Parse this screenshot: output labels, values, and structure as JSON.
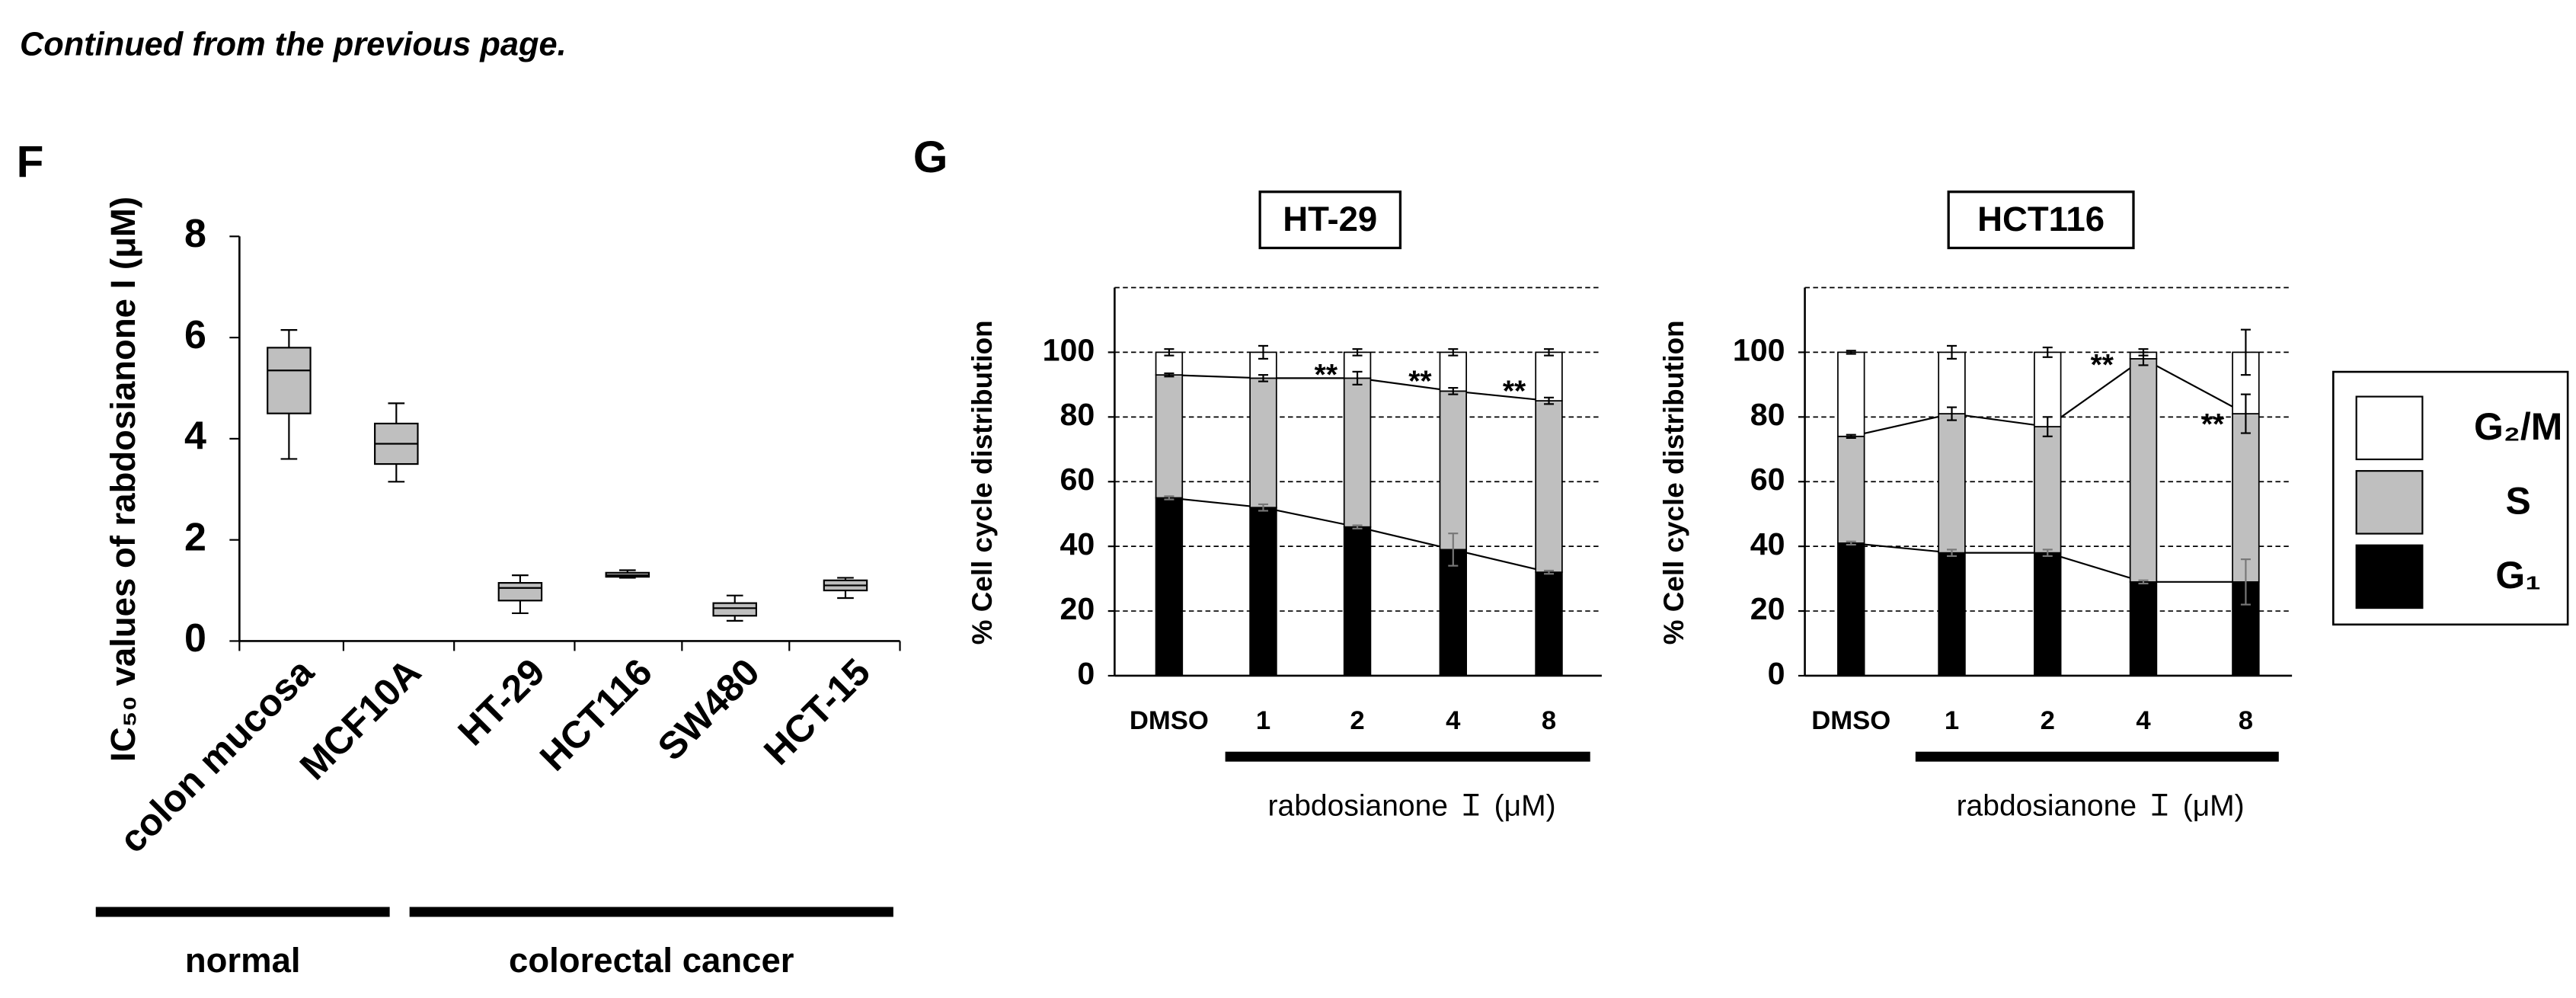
{
  "header": "Continued from the previous page.",
  "panels": [
    "F",
    "G"
  ],
  "chart_data": [
    {
      "type": "box",
      "ylabel": "IC₅₀ values of rabdosianone I (μM)",
      "categories": [
        "colon mucosa",
        "MCF10A",
        "HT-29",
        "HCT116",
        "SW480",
        "HCT-15"
      ],
      "boxes": [
        {
          "min": 3.6,
          "q1": 4.5,
          "median": 5.35,
          "q3": 5.8,
          "max": 6.15
        },
        {
          "min": 3.15,
          "q1": 3.5,
          "median": 3.9,
          "q3": 4.3,
          "max": 4.7
        },
        {
          "min": 0.55,
          "q1": 0.8,
          "median": 1.05,
          "q3": 1.15,
          "max": 1.3
        },
        {
          "min": 1.25,
          "q1": 1.27,
          "median": 1.3,
          "q3": 1.35,
          "max": 1.4
        },
        {
          "min": 0.4,
          "q1": 0.5,
          "median": 0.65,
          "q3": 0.75,
          "max": 0.9
        },
        {
          "min": 0.85,
          "q1": 1.0,
          "median": 1.1,
          "q3": 1.2,
          "max": 1.25
        }
      ],
      "color": "#bfbfbf",
      "ylim": [
        0,
        8
      ],
      "yticks": [
        0,
        2,
        4,
        6,
        8
      ],
      "groups": [
        "normal",
        "colorectal cancer"
      ]
    },
    {
      "type": "stacked_bar",
      "title": "HT-29",
      "ylabel": "% Cell cycle distribution",
      "xlabel": "rabdosianone Ｉ (μM)",
      "categories": [
        "DMSO",
        "1",
        "2",
        "4",
        "8"
      ],
      "series": [
        {
          "name": "G₁",
          "color": "#000000",
          "values": [
            55,
            52,
            46,
            39,
            32
          ],
          "errors": [
            0.5,
            1,
            0.5,
            5,
            0.5
          ]
        },
        {
          "name": "S",
          "color": "#bfbfbf",
          "values": [
            38,
            40,
            46,
            49,
            53
          ],
          "errors": [
            0.5,
            1,
            2,
            1,
            1
          ]
        },
        {
          "name": "G₂/M",
          "color": "#ffffff",
          "values": [
            7,
            8,
            8,
            12,
            15
          ],
          "errors": [
            1,
            2,
            1,
            1,
            1
          ]
        }
      ],
      "annotations": [
        "**",
        "**",
        "**"
      ],
      "ylim": [
        0,
        120
      ],
      "yticks": [
        0,
        20,
        40,
        60,
        80,
        100
      ],
      "grid": true
    },
    {
      "type": "stacked_bar",
      "title": "HCT116",
      "ylabel": "% Cell cycle distribution",
      "xlabel": "rabdosianone Ｉ (μM)",
      "categories": [
        "DMSO",
        "1",
        "2",
        "4",
        "8"
      ],
      "series": [
        {
          "color": "#000000",
          "values": [
            41,
            38,
            38,
            29,
            29
          ],
          "errors": [
            0.5,
            1,
            1,
            0.5,
            7
          ]
        },
        {
          "color": "#bfbfbf",
          "values": [
            33,
            43,
            39,
            69,
            52
          ],
          "errors": [
            0.5,
            2,
            3,
            2,
            6
          ]
        },
        {
          "color": "#ffffff",
          "values": [
            26,
            19,
            23,
            2,
            19
          ],
          "errors": [
            0.5,
            2,
            1.5,
            1,
            7
          ]
        }
      ],
      "annotations": [
        "**",
        "**"
      ],
      "ylim": [
        0,
        120
      ],
      "yticks": [
        0,
        20,
        40,
        60,
        80,
        100
      ],
      "grid": true
    }
  ]
}
